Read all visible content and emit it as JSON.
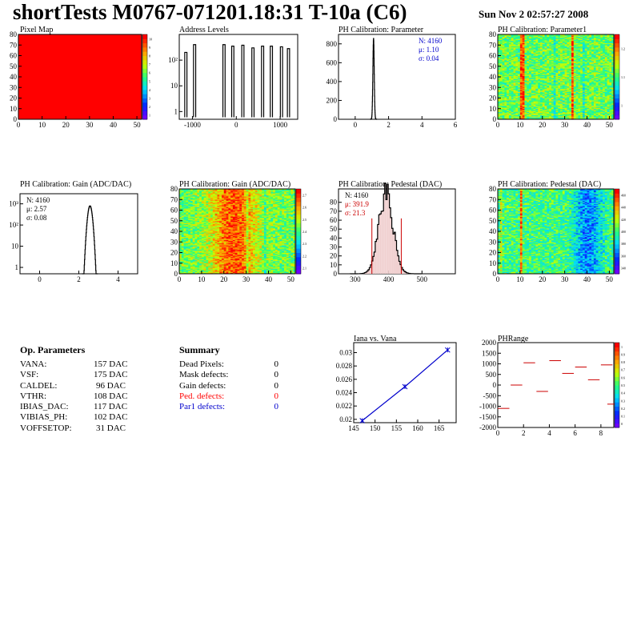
{
  "header": {
    "title": "shortTests M0767-071201.18:31 T-10a (C6)",
    "date": "Sun Nov  2 02:57:27 2008"
  },
  "op_parameters": {
    "title": "Op. Parameters",
    "rows": [
      {
        "name": "VANA:",
        "value": "157 DAC"
      },
      {
        "name": "VSF:",
        "value": "175 DAC"
      },
      {
        "name": "CALDEL:",
        "value": "96 DAC"
      },
      {
        "name": "VTHR:",
        "value": "108 DAC"
      },
      {
        "name": "IBIAS_DAC:",
        "value": "117 DAC"
      },
      {
        "name": "VIBIAS_PH:",
        "value": "102 DAC"
      },
      {
        "name": "VOFFSETOP:",
        "value": "31 DAC"
      }
    ]
  },
  "summary": {
    "title": "Summary",
    "rows": [
      {
        "name": "Dead Pixels:",
        "value": "0",
        "color": "#000000"
      },
      {
        "name": "Mask defects:",
        "value": "0",
        "color": "#000000"
      },
      {
        "name": "Gain defects:",
        "value": "0",
        "color": "#000000"
      },
      {
        "name": "Ped. defects:",
        "value": "0",
        "color": "#ff0000"
      },
      {
        "name": "Par1 defects:",
        "value": "0",
        "color": "#0000cc"
      }
    ]
  },
  "chart_data": [
    {
      "id": "pixelmap",
      "type": "heatmap",
      "title": "Pixel Map",
      "xlim": [
        0,
        52
      ],
      "ylim": [
        0,
        80
      ],
      "xticks": [
        0,
        10,
        20,
        30,
        40,
        50
      ],
      "yticks": [
        0,
        10,
        20,
        30,
        40,
        50,
        60,
        70,
        80
      ],
      "fill_color": "#ff0000",
      "uniform_value": 10,
      "palette": {
        "min": 0,
        "max": 10,
        "labels": [
          "1",
          "2",
          "3",
          "4",
          "5",
          "6",
          "7",
          "8",
          "9",
          "10"
        ]
      }
    },
    {
      "id": "addr",
      "type": "bar",
      "title": "Address Levels",
      "log_y": true,
      "xlim": [
        -1300,
        1400
      ],
      "ylim": [
        0.5,
        1000
      ],
      "xticks": [
        -1000,
        0,
        1000
      ],
      "yticks": [
        "1",
        "10",
        "10²"
      ],
      "peaks": [
        -1150,
        -950,
        -280,
        -80,
        150,
        380,
        600,
        800,
        1030,
        1190
      ],
      "peak_heights": [
        200,
        400,
        400,
        350,
        380,
        300,
        350,
        350,
        330,
        280
      ]
    },
    {
      "id": "phpar",
      "type": "bar",
      "title": "PH Calibration: Parameter",
      "xlim": [
        -1,
        6
      ],
      "ylim": [
        0,
        900
      ],
      "xticks": [
        0,
        2,
        4,
        6
      ],
      "yticks": [
        0,
        200,
        400,
        600,
        800
      ],
      "stats": {
        "n": "N: 4160",
        "mean": "μ: 1.10",
        "sigma": "σ: 0.04",
        "color": "#0000cc"
      },
      "dist": {
        "mean": 1.1,
        "sigma": 0.04,
        "peak": 860
      }
    },
    {
      "id": "phpar1map",
      "type": "heatmap",
      "title": "PH Calibration: Parameter1",
      "xlim": [
        0,
        52
      ],
      "ylim": [
        0,
        80
      ],
      "xticks": [
        0,
        10,
        20,
        30,
        40,
        50
      ],
      "yticks": [
        0,
        10,
        20,
        30,
        40,
        50,
        60,
        70,
        80
      ],
      "palette": {
        "labels": [
          "1",
          "1.1",
          "1.2"
        ]
      }
    },
    {
      "id": "gain",
      "type": "bar",
      "title": "PH Calibration: Gain (ADC/DAC)",
      "log_y": true,
      "xlim": [
        -1,
        5
      ],
      "ylim": [
        0.5,
        3000
      ],
      "xticks": [
        0,
        2,
        4
      ],
      "yticks": [
        "1",
        "10",
        "10²",
        "10³"
      ],
      "stats": {
        "n": "N: 4160",
        "mean": "μ: 2.57",
        "sigma": "σ: 0.08",
        "color": "#000000"
      },
      "dist": {
        "mean": 2.57,
        "sigma": 0.08,
        "peak": 800
      }
    },
    {
      "id": "gainmap",
      "type": "heatmap",
      "title": "PH Calibration: Gain (ADC/DAC)",
      "xlim": [
        0,
        52
      ],
      "ylim": [
        0,
        80
      ],
      "xticks": [
        0,
        10,
        20,
        30,
        40,
        50
      ],
      "yticks": [
        0,
        10,
        20,
        30,
        40,
        50,
        60,
        70,
        80
      ],
      "palette": {
        "labels": [
          "2.1",
          "2.2",
          "2.3",
          "2.4",
          "2.5",
          "2.6",
          "2.7"
        ]
      }
    },
    {
      "id": "ped",
      "type": "bar",
      "title": "PH Calibration: Pedestal (DAC)",
      "xlim": [
        250,
        600
      ],
      "ylim": [
        0,
        95
      ],
      "xticks": [
        300,
        400,
        500
      ],
      "yticks": [
        0,
        10,
        20,
        30,
        40,
        50,
        60,
        70,
        80
      ],
      "stats": {
        "n": "N: 4160",
        "mean": "μ: 391.9",
        "sigma": "σ: 21.3",
        "ncolor": "#000000",
        "color": "#cc0000"
      },
      "dist": {
        "mean": 391.9,
        "sigma": 21.3,
        "peak": 90
      },
      "cut_lines": [
        350,
        438
      ]
    },
    {
      "id": "pedmap",
      "type": "heatmap",
      "title": "PH Calibration: Pedestal (DAC)",
      "xlim": [
        0,
        52
      ],
      "ylim": [
        0,
        80
      ],
      "xticks": [
        0,
        10,
        20,
        30,
        40,
        50
      ],
      "yticks": [
        0,
        10,
        20,
        30,
        40,
        50,
        60,
        70,
        80
      ],
      "palette": {
        "labels": [
          "340",
          "360",
          "380",
          "400",
          "420",
          "440",
          "460"
        ]
      }
    },
    {
      "id": "iana",
      "type": "line",
      "title": "Iana vs. Vana",
      "xlim": [
        145,
        169
      ],
      "ylim": [
        0.0195,
        0.0315
      ],
      "xticks": [
        145,
        150,
        155,
        160,
        165
      ],
      "yticks": [
        0.02,
        0.022,
        0.024,
        0.026,
        0.028,
        0.03
      ],
      "x": [
        147,
        157,
        167
      ],
      "y": [
        0.0198,
        0.0249,
        0.0304
      ],
      "color": "#0000cc"
    },
    {
      "id": "phrange",
      "type": "scatter",
      "title": "PHRange",
      "xlim": [
        0,
        9
      ],
      "ylim": [
        -2000,
        2000
      ],
      "xticks": [
        0,
        2,
        4,
        6,
        8
      ],
      "yticks": [
        2000,
        1500,
        1000,
        500,
        0,
        -500,
        -1000,
        -1500,
        -2000
      ],
      "segments": [
        [
          0,
          -1100
        ],
        [
          1,
          0
        ],
        [
          2,
          1050
        ],
        [
          3,
          -300
        ],
        [
          4,
          1150
        ],
        [
          5,
          550
        ],
        [
          6,
          850
        ],
        [
          7,
          250
        ],
        [
          8,
          950
        ],
        [
          8.5,
          -900
        ]
      ],
      "palette": {
        "labels": [
          "0",
          "0.1",
          "0.2",
          "0.3",
          "0.4",
          "0.5",
          "0.6",
          "0.7",
          "0.8",
          "0.9",
          "1"
        ]
      }
    }
  ]
}
